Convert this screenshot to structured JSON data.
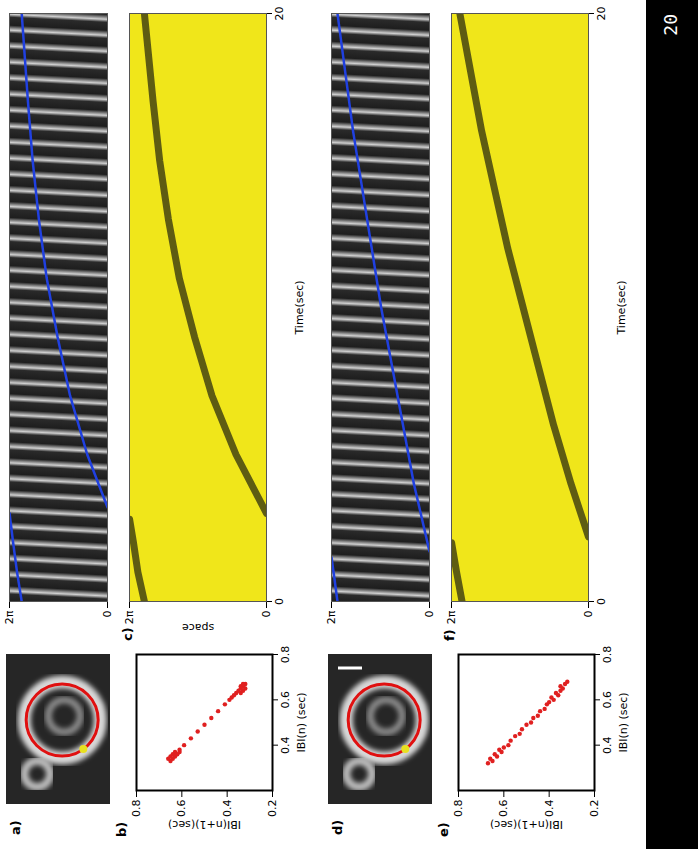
{
  "page_number": 20,
  "chart_data": [
    {
      "type": "image",
      "label": "a)"
    },
    {
      "type": "line",
      "color": "#2040e0",
      "x": [
        0,
        1,
        2,
        3,
        3.1,
        3.2,
        5,
        7,
        9,
        11,
        13,
        15,
        17,
        20
      ],
      "values": [
        5.5,
        5.8,
        6.05,
        6.28,
        null,
        0,
        1.3,
        2.4,
        3.2,
        3.9,
        4.4,
        4.8,
        5.1,
        5.5
      ],
      "xlim": [
        0,
        20
      ],
      "ylim": [
        0,
        6.2832
      ],
      "yticks": [
        0,
        {
          "value": 6.2832,
          "label": "2π"
        }
      ],
      "tick_labels": "y"
    },
    {
      "type": "scatter",
      "label": "b)",
      "color": "#e02020",
      "x": [
        0.33,
        0.34,
        0.34,
        0.35,
        0.35,
        0.36,
        0.36,
        0.37,
        0.37,
        0.38,
        0.4,
        0.43,
        0.46,
        0.49,
        0.52,
        0.55,
        0.58,
        0.6,
        0.61,
        0.62,
        0.63,
        0.63,
        0.64,
        0.64,
        0.65,
        0.65,
        0.66,
        0.66,
        0.67,
        0.67
      ],
      "values": [
        0.65,
        0.66,
        0.64,
        0.65,
        0.63,
        0.64,
        0.62,
        0.63,
        0.61,
        0.61,
        0.59,
        0.56,
        0.53,
        0.5,
        0.47,
        0.44,
        0.41,
        0.39,
        0.38,
        0.37,
        0.36,
        0.34,
        0.35,
        0.33,
        0.34,
        0.32,
        0.33,
        0.34,
        0.32,
        0.33
      ],
      "xlim": [
        0.2,
        0.8
      ],
      "ylim": [
        0.2,
        0.8
      ],
      "xticks": [
        0.4,
        0.6,
        0.8
      ],
      "yticks": [
        0.2,
        0.4,
        0.6,
        0.8
      ],
      "x_label": "IBI(n) (sec)",
      "y_label": "IBI(n+1)(sec)",
      "tick_labels": true
    },
    {
      "type": "line",
      "label": "c)",
      "color": "#3a3a10",
      "x": [
        0,
        1,
        2,
        2.8,
        2.9,
        3,
        5,
        7,
        9,
        11,
        13,
        15,
        17,
        20
      ],
      "values": [
        5.6,
        5.9,
        6.1,
        6.28,
        null,
        0,
        1.4,
        2.5,
        3.3,
        4.0,
        4.5,
        4.9,
        5.2,
        5.6
      ],
      "xlim": [
        0,
        20
      ],
      "ylim": [
        0,
        6.2832
      ],
      "xticks": [
        0,
        20
      ],
      "yticks": [
        0,
        {
          "value": 6.2832,
          "label": "2π"
        }
      ],
      "x_label": "Time(sec)",
      "y_label": "space",
      "tick_labels": true
    },
    {
      "type": "image",
      "label": "d)"
    },
    {
      "type": "line",
      "color": "#2040e0",
      "x": [
        0,
        0.8,
        1.5,
        1.6,
        1.7,
        4,
        6,
        8,
        10,
        12,
        14,
        16,
        18,
        20
      ],
      "values": [
        5.9,
        6.1,
        6.28,
        null,
        0,
        1.0,
        1.7,
        2.4,
        3.1,
        3.7,
        4.3,
        4.9,
        5.4,
        5.9
      ],
      "xlim": [
        0,
        20
      ],
      "ylim": [
        0,
        6.2832
      ],
      "yticks": [
        0,
        {
          "value": 6.2832,
          "label": "2π"
        }
      ],
      "tick_labels": "y"
    },
    {
      "type": "scatter",
      "label": "e)",
      "color": "#e02020",
      "x": [
        0.32,
        0.33,
        0.34,
        0.35,
        0.36,
        0.37,
        0.38,
        0.39,
        0.4,
        0.42,
        0.44,
        0.45,
        0.47,
        0.49,
        0.5,
        0.52,
        0.53,
        0.55,
        0.56,
        0.58,
        0.59,
        0.6,
        0.61,
        0.62,
        0.63,
        0.64,
        0.65,
        0.66,
        0.67,
        0.68
      ],
      "values": [
        0.67,
        0.65,
        0.66,
        0.63,
        0.64,
        0.61,
        0.62,
        0.6,
        0.58,
        0.57,
        0.55,
        0.53,
        0.52,
        0.5,
        0.48,
        0.47,
        0.45,
        0.44,
        0.42,
        0.41,
        0.4,
        0.38,
        0.39,
        0.36,
        0.37,
        0.35,
        0.34,
        0.35,
        0.33,
        0.32
      ],
      "xlim": [
        0.2,
        0.8
      ],
      "ylim": [
        0.2,
        0.8
      ],
      "xticks": [
        0.4,
        0.6,
        0.8
      ],
      "yticks": [
        0.2,
        0.4,
        0.6,
        0.8
      ],
      "x_label": "IBI(n) (sec)",
      "y_label": "IBI(n+1)(sec)",
      "tick_labels": true
    },
    {
      "type": "line",
      "label": "f)",
      "color": "#3a3a10",
      "x": [
        0,
        1,
        2,
        2.1,
        2.2,
        4,
        6,
        8,
        10,
        12,
        14,
        16,
        18,
        20
      ],
      "values": [
        5.8,
        6.05,
        6.28,
        null,
        0,
        0.8,
        1.6,
        2.3,
        3.0,
        3.7,
        4.3,
        4.9,
        5.4,
        5.9
      ],
      "xlim": [
        0,
        20
      ],
      "ylim": [
        0,
        6.2832
      ],
      "xticks": [
        0,
        20
      ],
      "yticks": [
        0,
        {
          "value": 6.2832,
          "label": "2π"
        }
      ],
      "x_label": "Time(sec)",
      "tick_labels": true
    }
  ]
}
